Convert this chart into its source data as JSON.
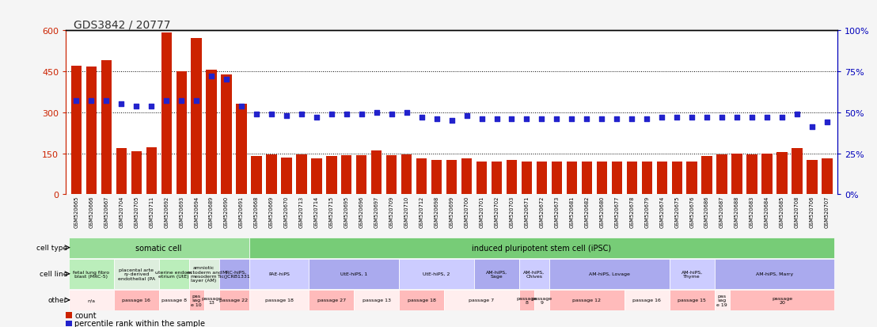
{
  "title": "GDS3842 / 20777",
  "gsm_ids": [
    "GSM520665",
    "GSM520666",
    "GSM520667",
    "GSM520704",
    "GSM520705",
    "GSM520711",
    "GSM520692",
    "GSM520693",
    "GSM520694",
    "GSM520689",
    "GSM520690",
    "GSM520691",
    "GSM520668",
    "GSM520669",
    "GSM520670",
    "GSM520713",
    "GSM520714",
    "GSM520715",
    "GSM520695",
    "GSM520696",
    "GSM520697",
    "GSM520709",
    "GSM520710",
    "GSM520712",
    "GSM520698",
    "GSM520699",
    "GSM520700",
    "GSM520701",
    "GSM520702",
    "GSM520703",
    "GSM520671",
    "GSM520672",
    "GSM520673",
    "GSM520681",
    "GSM520682",
    "GSM520680",
    "GSM520677",
    "GSM520678",
    "GSM520679",
    "GSM520674",
    "GSM520675",
    "GSM520676",
    "GSM520686",
    "GSM520687",
    "GSM520688",
    "GSM520683",
    "GSM520684",
    "GSM520685",
    "GSM520708",
    "GSM520706",
    "GSM520707"
  ],
  "counts": [
    470,
    468,
    490,
    170,
    158,
    172,
    592,
    450,
    572,
    455,
    440,
    330,
    140,
    145,
    135,
    145,
    130,
    140,
    143,
    143,
    160,
    143,
    147,
    130,
    125,
    125,
    130,
    120,
    120,
    125,
    120,
    120,
    120,
    120,
    120,
    120,
    120,
    120,
    120,
    120,
    120,
    120,
    140,
    147,
    150,
    147,
    150,
    155,
    170,
    125,
    130
  ],
  "percentile_ranks_pct": [
    57,
    57,
    57,
    55,
    54,
    54,
    57,
    57,
    57,
    72,
    70,
    54,
    49,
    49,
    48,
    49,
    47,
    49,
    49,
    49,
    50,
    49,
    50,
    47,
    46,
    45,
    48,
    46,
    46,
    46,
    46,
    46,
    46,
    46,
    46,
    46,
    46,
    46,
    46,
    47,
    47,
    47,
    47,
    47,
    47,
    47,
    47,
    47,
    49,
    41,
    44
  ],
  "ylim": [
    0,
    600
  ],
  "bar_color": "#cc2200",
  "dot_color": "#2222cc",
  "n_bars": 51,
  "background_color": "#f5f5f5",
  "plot_bg_color": "#ffffff",
  "cell_type_groups": [
    {
      "label": "somatic cell",
      "start": 0,
      "end": 12,
      "color": "#99dd99"
    },
    {
      "label": "induced pluripotent stem cell (iPSC)",
      "start": 12,
      "end": 51,
      "color": "#77cc77"
    }
  ],
  "cell_line_groups": [
    {
      "label": "fetal lung fibro\nblast (MRC-5)",
      "start": 0,
      "end": 3,
      "color": "#bbeebb"
    },
    {
      "label": "placental arte\nry-derived\nendothelial (PA",
      "start": 3,
      "end": 6,
      "color": "#ddeedd"
    },
    {
      "label": "uterine endom\netrium (UtE)",
      "start": 6,
      "end": 8,
      "color": "#bbeebb"
    },
    {
      "label": "amniotic\nectoderm and\nmesoderm\nlayer (AM)",
      "start": 8,
      "end": 10,
      "color": "#ddeedd"
    },
    {
      "label": "MRC-hiPS,\nTic(JCRB1331",
      "start": 10,
      "end": 12,
      "color": "#aaaaee"
    },
    {
      "label": "PAE-hiPS",
      "start": 12,
      "end": 16,
      "color": "#ccccff"
    },
    {
      "label": "UtE-hiPS, 1",
      "start": 16,
      "end": 22,
      "color": "#aaaaee"
    },
    {
      "label": "UtE-hiPS, 2",
      "start": 22,
      "end": 27,
      "color": "#ccccff"
    },
    {
      "label": "AM-hiPS,\nSage",
      "start": 27,
      "end": 30,
      "color": "#aaaaee"
    },
    {
      "label": "AM-hiPS,\nChives",
      "start": 30,
      "end": 32,
      "color": "#ccccff"
    },
    {
      "label": "AM-hiPS, Lovage",
      "start": 32,
      "end": 40,
      "color": "#aaaaee"
    },
    {
      "label": "AM-hiPS,\nThyme",
      "start": 40,
      "end": 43,
      "color": "#ccccff"
    },
    {
      "label": "AM-hiPS, Marry",
      "start": 43,
      "end": 51,
      "color": "#aaaaee"
    }
  ],
  "other_groups": [
    {
      "label": "n/a",
      "start": 0,
      "end": 3,
      "color": "#ffeeee"
    },
    {
      "label": "passage 16",
      "start": 3,
      "end": 6,
      "color": "#ffbbbb"
    },
    {
      "label": "passage 8",
      "start": 6,
      "end": 8,
      "color": "#ffeeee"
    },
    {
      "label": "pas\nsag\ne 10",
      "start": 8,
      "end": 9,
      "color": "#ffbbbb"
    },
    {
      "label": "passage\n13",
      "start": 9,
      "end": 10,
      "color": "#ffeeee"
    },
    {
      "label": "passage 22",
      "start": 10,
      "end": 12,
      "color": "#ffbbbb"
    },
    {
      "label": "passage 18",
      "start": 12,
      "end": 16,
      "color": "#ffeeee"
    },
    {
      "label": "passage 27",
      "start": 16,
      "end": 19,
      "color": "#ffbbbb"
    },
    {
      "label": "passage 13",
      "start": 19,
      "end": 22,
      "color": "#ffeeee"
    },
    {
      "label": "passage 18",
      "start": 22,
      "end": 25,
      "color": "#ffbbbb"
    },
    {
      "label": "passage 7",
      "start": 25,
      "end": 30,
      "color": "#ffeeee"
    },
    {
      "label": "passage\n8",
      "start": 30,
      "end": 31,
      "color": "#ffbbbb"
    },
    {
      "label": "passage\n9",
      "start": 31,
      "end": 32,
      "color": "#ffeeee"
    },
    {
      "label": "passage 12",
      "start": 32,
      "end": 37,
      "color": "#ffbbbb"
    },
    {
      "label": "passage 16",
      "start": 37,
      "end": 40,
      "color": "#ffeeee"
    },
    {
      "label": "passage 15",
      "start": 40,
      "end": 43,
      "color": "#ffbbbb"
    },
    {
      "label": "pas\nsag\ne 19",
      "start": 43,
      "end": 44,
      "color": "#ffeeee"
    },
    {
      "label": "passage\n20",
      "start": 44,
      "end": 51,
      "color": "#ffbbbb"
    }
  ]
}
